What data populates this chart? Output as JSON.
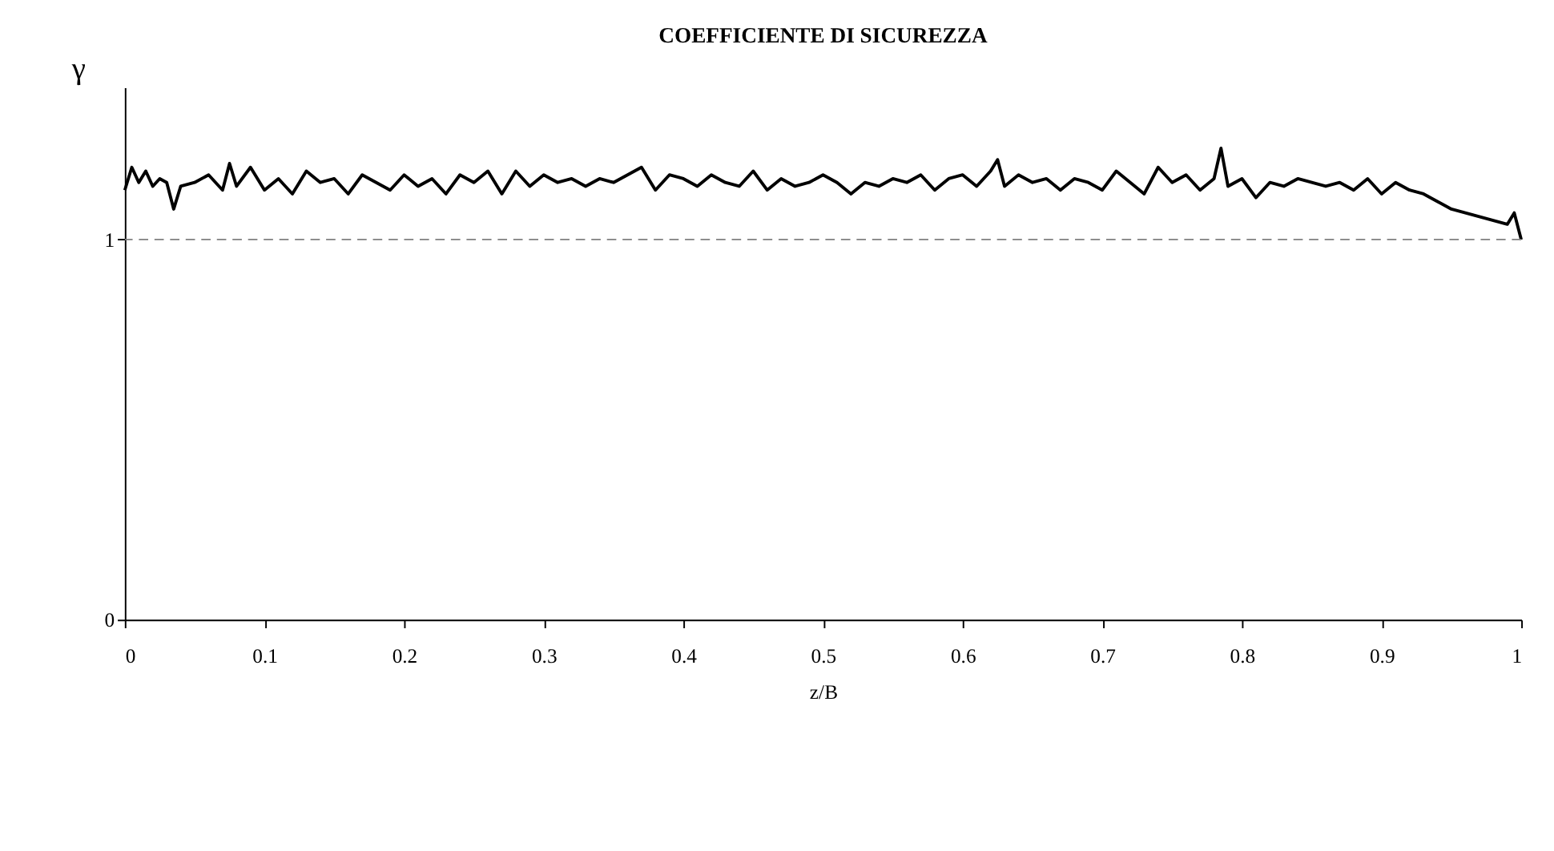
{
  "chart_data": {
    "type": "line",
    "title": "COEFFICIENTE DI SICUREZZA",
    "xlabel": "z/B",
    "ylabel": "γ",
    "x": [
      0,
      0.005,
      0.01,
      0.015,
      0.02,
      0.025,
      0.03,
      0.035,
      0.04,
      0.05,
      0.06,
      0.07,
      0.075,
      0.08,
      0.09,
      0.1,
      0.11,
      0.12,
      0.13,
      0.14,
      0.15,
      0.16,
      0.17,
      0.18,
      0.19,
      0.2,
      0.21,
      0.22,
      0.23,
      0.24,
      0.25,
      0.26,
      0.27,
      0.28,
      0.29,
      0.3,
      0.31,
      0.32,
      0.33,
      0.34,
      0.35,
      0.36,
      0.37,
      0.38,
      0.39,
      0.4,
      0.41,
      0.42,
      0.43,
      0.44,
      0.45,
      0.46,
      0.47,
      0.48,
      0.49,
      0.5,
      0.51,
      0.52,
      0.53,
      0.54,
      0.55,
      0.56,
      0.57,
      0.58,
      0.59,
      0.6,
      0.61,
      0.62,
      0.625,
      0.63,
      0.64,
      0.65,
      0.66,
      0.67,
      0.68,
      0.69,
      0.7,
      0.71,
      0.72,
      0.73,
      0.74,
      0.75,
      0.76,
      0.77,
      0.78,
      0.785,
      0.79,
      0.8,
      0.81,
      0.82,
      0.83,
      0.84,
      0.85,
      0.86,
      0.87,
      0.88,
      0.89,
      0.9,
      0.91,
      0.92,
      0.93,
      0.94,
      0.95,
      0.96,
      0.97,
      0.98,
      0.99,
      0.995,
      1
    ],
    "series": [
      {
        "color": "#000000",
        "values": [
          1.13,
          1.19,
          1.15,
          1.18,
          1.14,
          1.16,
          1.15,
          1.08,
          1.14,
          1.15,
          1.17,
          1.13,
          1.2,
          1.14,
          1.19,
          1.13,
          1.16,
          1.12,
          1.18,
          1.15,
          1.16,
          1.12,
          1.17,
          1.15,
          1.13,
          1.17,
          1.14,
          1.16,
          1.12,
          1.17,
          1.15,
          1.18,
          1.12,
          1.18,
          1.14,
          1.17,
          1.15,
          1.16,
          1.14,
          1.16,
          1.15,
          1.17,
          1.19,
          1.13,
          1.17,
          1.16,
          1.14,
          1.17,
          1.15,
          1.14,
          1.18,
          1.13,
          1.16,
          1.14,
          1.15,
          1.17,
          1.15,
          1.12,
          1.15,
          1.14,
          1.16,
          1.15,
          1.17,
          1.13,
          1.16,
          1.17,
          1.14,
          1.18,
          1.21,
          1.14,
          1.17,
          1.15,
          1.16,
          1.13,
          1.16,
          1.15,
          1.13,
          1.18,
          1.15,
          1.12,
          1.19,
          1.15,
          1.17,
          1.13,
          1.16,
          1.24,
          1.14,
          1.16,
          1.11,
          1.15,
          1.14,
          1.16,
          1.15,
          1.14,
          1.15,
          1.13,
          1.16,
          1.12,
          1.15,
          1.13,
          1.12,
          1.1,
          1.08,
          1.07,
          1.06,
          1.05,
          1.04,
          1.07,
          1.0
        ]
      }
    ],
    "xlim": [
      0,
      1
    ],
    "xticks": [
      0,
      0.1,
      0.2,
      0.3,
      0.4,
      0.5,
      0.6,
      0.7,
      0.8,
      0.9,
      1
    ],
    "ylim": [
      0,
      1.4
    ],
    "yticks": [
      0,
      1
    ],
    "ref_lines": [
      {
        "axis": "y",
        "value": 1,
        "color": "#808080",
        "line_style": "dashed"
      }
    ],
    "grid": false,
    "line_style": "solid",
    "marker": "none"
  }
}
